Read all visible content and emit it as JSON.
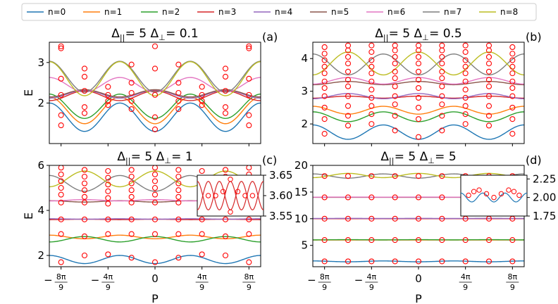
{
  "legend": [
    "n=0",
    "n=1",
    "n=2",
    "n=3",
    "n=4",
    "n=5",
    "n=6",
    "n=7",
    "n=8"
  ],
  "colors": [
    "#1f77b4",
    "#ff7f0e",
    "#2ca02c",
    "#d62728",
    "#9467bd",
    "#8c564b",
    "#e377c2",
    "#7f7f7f",
    "#bcbd22"
  ],
  "marker_color": "#ff0000",
  "x_ticks": [
    {
      "v": -2.7925,
      "pre": "−",
      "num": "8π",
      "den": "9"
    },
    {
      "v": -1.3963,
      "pre": "−",
      "num": "4π",
      "den": "9"
    },
    {
      "v": 0,
      "pre": "",
      "num": "0",
      "den": ""
    },
    {
      "v": 1.3963,
      "pre": "",
      "num": "4π",
      "den": "9"
    },
    {
      "v": 2.7925,
      "pre": "",
      "num": "8π",
      "den": "9"
    }
  ],
  "xlabel": "P",
  "ylabel": "E",
  "chart_data": [
    {
      "type": "line",
      "panel_label": "(a)",
      "title_main": "Δ",
      "title_sub": "||",
      "title_rest": " = 5 Δ",
      "title_sub2": "⊥",
      "title_end": " = 0.1",
      "xlim": [
        -3.14159,
        3.14159
      ],
      "ylim": [
        1.0,
        3.5
      ],
      "yticks": [
        2,
        3
      ],
      "series": [
        {
          "name": "n=0",
          "mean": 1.65,
          "amp": -0.35,
          "mod": "cos3"
        },
        {
          "name": "n=1",
          "mean": 1.82,
          "amp": -0.33,
          "mod": "cos3"
        },
        {
          "name": "n=2",
          "mean": 1.92,
          "amp": -0.3,
          "mod": "cos3"
        },
        {
          "name": "n=3",
          "mean": 2.18,
          "amp": 0.12,
          "mod": "cos3"
        },
        {
          "name": "n=4",
          "mean": 2.22,
          "amp": 0.1,
          "mod": "cos3"
        },
        {
          "name": "n=5",
          "mean": 2.24,
          "amp": 0.09,
          "mod": "cos3"
        },
        {
          "name": "n=6",
          "mean": 2.45,
          "amp": -0.18,
          "mod": "cos3"
        },
        {
          "name": "n=7",
          "mean": 2.65,
          "amp": -0.38,
          "mod": "cos3"
        },
        {
          "name": "n=8",
          "mean": 2.6,
          "amp": -0.42,
          "mod": "cos3"
        }
      ],
      "points_x": [
        -2.7925,
        -2.0944,
        -1.3963,
        -0.6981,
        0,
        0.6981,
        1.3963,
        2.0944,
        2.7925
      ],
      "points_y": [
        [
          1.45,
          1.7,
          2.2,
          2.6,
          3.35,
          3.4
        ],
        [
          1.75,
          1.9,
          2.3,
          2.65,
          2.85
        ],
        [
          1.95,
          2.05,
          2.2,
          2.4
        ],
        [
          1.85,
          2.05,
          2.25,
          2.5,
          2.95
        ],
        [
          1.35,
          1.65,
          2.2,
          2.85,
          3.4
        ],
        [
          1.85,
          2.05,
          2.25,
          2.5,
          2.95
        ],
        [
          1.95,
          2.05,
          2.2,
          2.4
        ],
        [
          1.75,
          1.9,
          2.3,
          2.65,
          2.85
        ],
        [
          1.45,
          1.7,
          2.2,
          2.6,
          3.35,
          3.4
        ]
      ],
      "inset": null
    },
    {
      "type": "line",
      "panel_label": "(b)",
      "title_main": "Δ",
      "title_sub": "||",
      "title_rest": " = 5 Δ",
      "title_sub2": "⊥",
      "title_end": " = 0.5",
      "xlim": [
        -3.14159,
        3.14159
      ],
      "ylim": [
        1.4,
        4.5
      ],
      "yticks": [
        2,
        3,
        4
      ],
      "series": [
        {
          "name": "n=0",
          "mean": 1.75,
          "amp": -0.22,
          "mod": "cos3"
        },
        {
          "name": "n=1",
          "mean": 2.42,
          "amp": -0.12,
          "mod": "cos3"
        },
        {
          "name": "n=2",
          "mean": 2.22,
          "amp": -0.15,
          "mod": "cos3"
        },
        {
          "name": "n=3",
          "mean": 2.82,
          "amp": 0.03,
          "mod": "cos3"
        },
        {
          "name": "n=4",
          "mean": 2.85,
          "amp": 0.08,
          "mod": "cos3"
        },
        {
          "name": "n=5",
          "mean": 3.25,
          "amp": 0.05,
          "mod": "cos3"
        },
        {
          "name": "n=6",
          "mean": 3.32,
          "amp": 0.1,
          "mod": "cos3"
        },
        {
          "name": "n=7",
          "mean": 3.82,
          "amp": -0.32,
          "mod": "cos3"
        },
        {
          "name": "n=8",
          "mean": 3.85,
          "amp": 0.35,
          "mod": "cos3"
        }
      ],
      "points_x": [
        -2.7925,
        -2.0944,
        -1.3963,
        -0.6981,
        0,
        0.6981,
        1.3963,
        2.0944,
        2.7925
      ],
      "points_y": [
        [
          1.7,
          2.15,
          2.5,
          2.85,
          3.1,
          3.3,
          3.55,
          3.75,
          3.95,
          4.15,
          4.35
        ],
        [
          1.95,
          2.25,
          2.55,
          2.85,
          3.15,
          3.35,
          3.6,
          3.85,
          4.05,
          4.25,
          4.4
        ],
        [
          2.0,
          2.3,
          2.55,
          2.8,
          3.05,
          3.3,
          3.55,
          3.75,
          3.95,
          4.2,
          4.4
        ],
        [
          1.8,
          2.25,
          2.6,
          2.85,
          3.15,
          3.4,
          3.6,
          3.85,
          4.05,
          4.25,
          4.4
        ],
        [
          1.6,
          2.15,
          2.5,
          2.8,
          3.1,
          3.35,
          3.6,
          3.85,
          4.05,
          4.25,
          4.4
        ],
        [
          1.8,
          2.25,
          2.6,
          2.85,
          3.15,
          3.4,
          3.6,
          3.85,
          4.05,
          4.25,
          4.4
        ],
        [
          2.0,
          2.3,
          2.55,
          2.8,
          3.05,
          3.3,
          3.55,
          3.75,
          3.95,
          4.2,
          4.4
        ],
        [
          1.95,
          2.25,
          2.55,
          2.85,
          3.15,
          3.35,
          3.6,
          3.85,
          4.05,
          4.25,
          4.4
        ],
        [
          1.7,
          2.15,
          2.5,
          2.85,
          3.1,
          3.3,
          3.55,
          3.75,
          3.95,
          4.15,
          4.35
        ]
      ],
      "inset": null
    },
    {
      "type": "line",
      "panel_label": "(c)",
      "title_main": "Δ",
      "title_sub": "||",
      "title_rest": " = 5 Δ",
      "title_sub2": "⊥",
      "title_end": " = 1",
      "xlim": [
        -3.14159,
        3.14159
      ],
      "ylim": [
        1.5,
        6.0
      ],
      "yticks": [
        2,
        4,
        6
      ],
      "series": [
        {
          "name": "n=0",
          "mean": 1.82,
          "amp": -0.18,
          "mod": "cos3"
        },
        {
          "name": "n=1",
          "mean": 2.82,
          "amp": -0.08,
          "mod": "cos3"
        },
        {
          "name": "n=2",
          "mean": 2.72,
          "amp": 0.12,
          "mod": "cos3"
        },
        {
          "name": "n=3",
          "mean": 3.6,
          "amp": 0.01,
          "mod": "cos3"
        },
        {
          "name": "n=4",
          "mean": 3.62,
          "amp": -0.01,
          "mod": "cos3"
        },
        {
          "name": "n=5",
          "mean": 4.4,
          "amp": -0.03,
          "mod": "cos3"
        },
        {
          "name": "n=6",
          "mean": 4.45,
          "amp": 0.03,
          "mod": "cos3"
        },
        {
          "name": "n=7",
          "mean": 5.2,
          "amp": -0.35,
          "mod": "cos3"
        },
        {
          "name": "n=8",
          "mean": 5.4,
          "amp": 0.35,
          "mod": "cos3"
        }
      ],
      "points_x": [
        -2.7925,
        -2.0944,
        -1.3963,
        -0.6981,
        0,
        0.6981,
        1.3963,
        2.0944,
        2.7925
      ],
      "points_y": [
        [
          1.7,
          2.95,
          3.6,
          4.35,
          4.7,
          5.0,
          5.3,
          5.6,
          5.9
        ],
        [
          2.0,
          2.85,
          3.6,
          4.35,
          4.6,
          4.9,
          5.2,
          5.5,
          5.8
        ],
        [
          2.05,
          2.95,
          3.6,
          4.3,
          4.55,
          4.85,
          5.15,
          5.45,
          5.75
        ],
        [
          1.9,
          2.95,
          3.6,
          4.35,
          4.6,
          4.9,
          5.2,
          5.5,
          5.8
        ],
        [
          1.7,
          2.95,
          3.6,
          4.35,
          4.7,
          5.0,
          5.3,
          5.6,
          5.9
        ],
        [
          1.9,
          2.95,
          3.6,
          4.35,
          4.6,
          4.9,
          5.2,
          5.5,
          5.8
        ],
        [
          2.05,
          2.95,
          3.6,
          4.3,
          4.55,
          4.85,
          5.15,
          5.45,
          5.75
        ],
        [
          2.0,
          2.85,
          3.6,
          4.35,
          4.6,
          4.9,
          5.2,
          5.5,
          5.8
        ],
        [
          1.7,
          2.95,
          3.6,
          4.35,
          4.7,
          5.0,
          5.3,
          5.6,
          5.9
        ]
      ],
      "inset": {
        "ylim": [
          3.55,
          3.65
        ],
        "yticks": [
          "3.65",
          "3.60",
          "3.55"
        ],
        "ytick_vals": [
          3.65,
          3.6,
          3.55
        ],
        "lines": [
          {
            "mean": 3.6,
            "amp": 0.035
          },
          {
            "mean": 3.6,
            "amp": -0.035
          }
        ],
        "points": [
          [
            -1.4,
            3.6
          ],
          [
            -0.7,
            3.61
          ],
          [
            0,
            3.64
          ],
          [
            0,
            3.56
          ],
          [
            0.7,
            3.61
          ],
          [
            1.4,
            3.6
          ],
          [
            -2.1,
            3.6
          ],
          [
            2.1,
            3.6
          ]
        ]
      }
    },
    {
      "type": "line",
      "panel_label": "(d)",
      "title_main": "Δ",
      "title_sub": "||",
      "title_rest": " = 5 Δ",
      "title_sub2": "⊥",
      "title_end": " = 5",
      "xlim": [
        -3.14159,
        3.14159
      ],
      "ylim": [
        1.0,
        20.0
      ],
      "yticks": [
        5,
        10,
        15,
        20
      ],
      "series": [
        {
          "name": "n=0",
          "mean": 2.0,
          "amp": -0.08,
          "mod": "cos3"
        },
        {
          "name": "n=1",
          "mean": 6.0,
          "amp": 0.0,
          "mod": "cos3"
        },
        {
          "name": "n=2",
          "mean": 6.05,
          "amp": 0.02,
          "mod": "cos3"
        },
        {
          "name": "n=3",
          "mean": 10.0,
          "amp": 0.0,
          "mod": "cos3"
        },
        {
          "name": "n=4",
          "mean": 10.05,
          "amp": 0.01,
          "mod": "cos3"
        },
        {
          "name": "n=5",
          "mean": 14.0,
          "amp": 0.0,
          "mod": "cos3"
        },
        {
          "name": "n=6",
          "mean": 14.05,
          "amp": 0.01,
          "mod": "cos3"
        },
        {
          "name": "n=7",
          "mean": 18.0,
          "amp": -0.4,
          "mod": "cos3"
        },
        {
          "name": "n=8",
          "mean": 18.1,
          "amp": 0.4,
          "mod": "cos3"
        }
      ],
      "points_x": [
        -2.7925,
        -2.0944,
        -1.3963,
        -0.6981,
        0,
        0.6981,
        1.3963,
        2.0944,
        2.7925
      ],
      "points_y": [
        [
          2.0,
          6.0,
          10.0,
          14.0,
          18.0
        ],
        [
          2.0,
          6.0,
          10.0,
          14.0,
          18.0
        ],
        [
          2.0,
          6.0,
          10.0,
          14.0,
          18.0
        ],
        [
          2.0,
          6.0,
          10.0,
          14.0,
          18.0
        ],
        [
          2.0,
          6.0,
          10.0,
          14.0,
          18.0
        ],
        [
          2.0,
          6.0,
          10.0,
          14.0,
          18.0
        ],
        [
          2.0,
          6.0,
          10.0,
          14.0,
          18.0
        ],
        [
          2.0,
          6.0,
          10.0,
          14.0,
          18.0
        ],
        [
          2.0,
          6.0,
          10.0,
          14.0,
          18.0
        ]
      ],
      "inset": {
        "ylim": [
          1.75,
          2.3
        ],
        "yticks": [
          "2.25",
          "2.00",
          "1.75"
        ],
        "ytick_vals": [
          2.25,
          2.0,
          1.75
        ],
        "lines": [
          {
            "mean": 2.0,
            "amp": -0.06
          }
        ],
        "points": [
          [
            -2.4,
            2.03
          ],
          [
            -1.9,
            2.08
          ],
          [
            -1.4,
            2.1
          ],
          [
            -0.7,
            2.05
          ],
          [
            0,
            2.0
          ],
          [
            0.7,
            2.05
          ],
          [
            1.4,
            2.1
          ],
          [
            1.9,
            2.08
          ],
          [
            2.4,
            2.03
          ]
        ]
      }
    }
  ]
}
